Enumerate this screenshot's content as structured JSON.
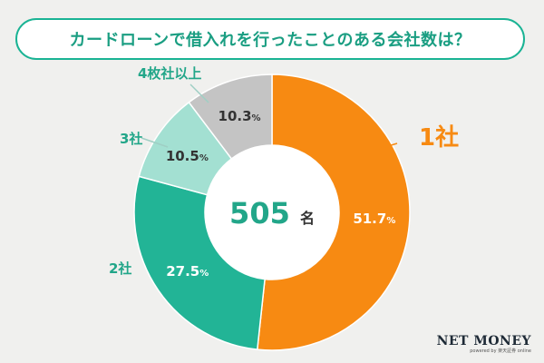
{
  "title": "カードローンで借入れを行ったことのある会社数は？",
  "chart_data": {
    "type": "pie",
    "variant": "donut",
    "center_value": "505",
    "center_unit": "名",
    "unit_symbol": "%",
    "slices": [
      {
        "label": "1社",
        "value_text": "51.7",
        "value": 51.7,
        "color": "#f78a12"
      },
      {
        "label": "2社",
        "value_text": "27.5",
        "value": 27.5,
        "color": "#22b496"
      },
      {
        "label": "3社",
        "value_text": "10.5",
        "value": 10.5,
        "color": "#a3e0d2"
      },
      {
        "label": "4枚社以上",
        "value_text": "10.3",
        "value": 10.3,
        "color": "#c4c4c4"
      }
    ]
  },
  "logo": {
    "main": "NET MONEY",
    "sub": "powered by 楽天証券 online"
  }
}
